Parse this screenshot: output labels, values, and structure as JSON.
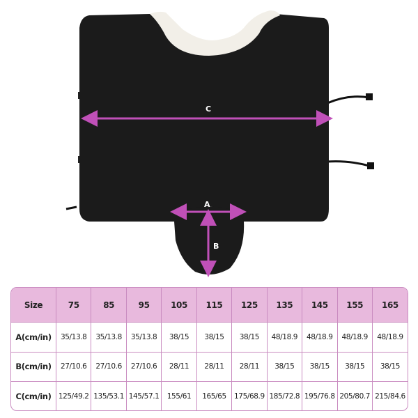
{
  "illustration": {
    "labels": {
      "a": "A",
      "b": "B",
      "c": "C"
    },
    "colors": {
      "blanket": "#1b1b1b",
      "collar": "#f2efe8",
      "arrow": "#c050b8"
    }
  },
  "size_table": {
    "header_label": "Size",
    "sizes": [
      "75",
      "85",
      "95",
      "105",
      "115",
      "125",
      "135",
      "145",
      "155",
      "165"
    ],
    "rows": [
      {
        "label": "A(cm/in)",
        "values": [
          "35/13.8",
          "35/13.8",
          "35/13.8",
          "38/15",
          "38/15",
          "38/15",
          "48/18.9",
          "48/18.9",
          "48/18.9",
          "48/18.9"
        ]
      },
      {
        "label": "B(cm/in)",
        "values": [
          "27/10.6",
          "27/10.6",
          "27/10.6",
          "28/11",
          "28/11",
          "28/11",
          "38/15",
          "38/15",
          "38/15",
          "38/15"
        ]
      },
      {
        "label": "C(cm/in)",
        "values": [
          "125/49.2",
          "135/53.1",
          "145/57.1",
          "155/61",
          "165/65",
          "175/68.9",
          "185/72.8",
          "195/76.8",
          "205/80.7",
          "215/84.6"
        ]
      }
    ],
    "colors": {
      "header_bg": "#e8b9dd",
      "border": "#c98bc0"
    }
  }
}
